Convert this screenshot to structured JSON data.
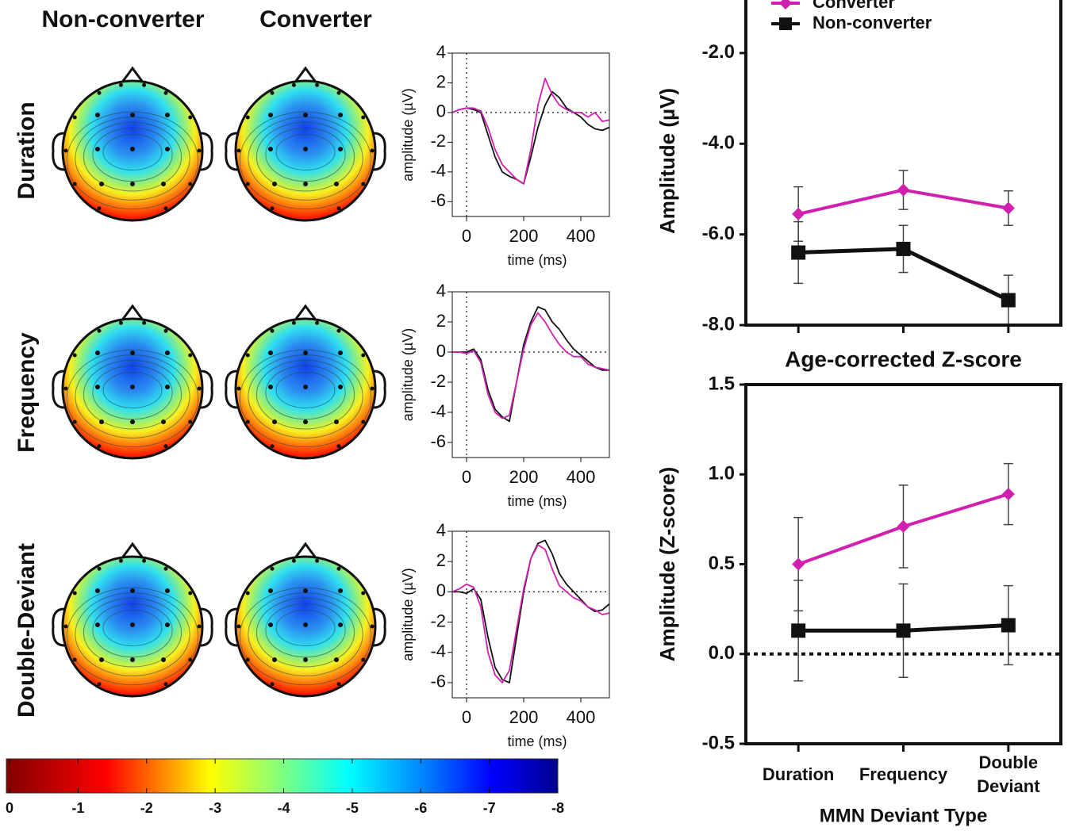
{
  "column_headers": [
    "Non-converter",
    "Converter"
  ],
  "row_labels": [
    "Duration",
    "Frequency",
    "Double-Deviant"
  ],
  "chart_data": [
    {
      "type": "line",
      "xlabel": "time (ms)",
      "ylabel": "amplitude (µV)",
      "x": [
        -50,
        -25,
        0,
        25,
        50,
        75,
        100,
        125,
        150,
        175,
        200,
        225,
        250,
        275,
        300,
        325,
        350,
        375,
        400,
        425,
        450,
        475,
        500
      ],
      "xlim": [
        -50,
        500
      ],
      "xticks": [
        0,
        200,
        400
      ],
      "ylim": [
        -7,
        4
      ],
      "yticks": [
        4,
        2,
        0,
        -2,
        -4,
        -6
      ],
      "series": [
        {
          "color": "#111111",
          "values": [
            0,
            0.2,
            0.3,
            0.2,
            0,
            -1.5,
            -3,
            -4,
            -4.3,
            -4.5,
            -4.8,
            -3,
            -1,
            0.5,
            1.4,
            1,
            0.3,
            0,
            -0.3,
            -0.8,
            -1.1,
            -1.2,
            -1.0
          ]
        },
        {
          "color": "#d11fb0",
          "values": [
            0,
            0.2,
            0.3,
            0.3,
            0.1,
            -1,
            -2.5,
            -3.5,
            -4,
            -4.5,
            -4.8,
            -2.5,
            0.5,
            2.3,
            1.2,
            0.5,
            0.2,
            0,
            0,
            -0.3,
            0,
            -0.6,
            -0.5
          ]
        }
      ]
    },
    {
      "type": "line",
      "xlabel": "time (ms)",
      "ylabel": "amplitude (µV)",
      "x": [
        -50,
        -25,
        0,
        25,
        50,
        75,
        100,
        125,
        150,
        175,
        200,
        225,
        250,
        275,
        300,
        325,
        350,
        375,
        400,
        425,
        450,
        475,
        500
      ],
      "xlim": [
        -50,
        500
      ],
      "xticks": [
        0,
        200,
        400
      ],
      "ylim": [
        -7,
        4
      ],
      "yticks": [
        4,
        2,
        0,
        -2,
        -4,
        -6
      ],
      "series": [
        {
          "color": "#111111",
          "values": [
            0,
            0,
            0,
            0.2,
            -0.5,
            -2.5,
            -3.8,
            -4.3,
            -4.6,
            -2,
            0.5,
            2,
            3,
            2.8,
            2,
            1.5,
            0.8,
            0.2,
            -0.2,
            -0.6,
            -1,
            -1.2,
            -1.2
          ]
        },
        {
          "color": "#d11fb0",
          "values": [
            0,
            0,
            -0.1,
            0.1,
            -0.7,
            -2.8,
            -4,
            -4.4,
            -4.2,
            -2,
            0.2,
            1.8,
            2.6,
            2,
            1.2,
            0.5,
            0,
            -0.3,
            -0.3,
            -0.8,
            -1,
            -1.1,
            -1.2
          ]
        }
      ]
    },
    {
      "type": "line",
      "xlabel": "time (ms)",
      "ylabel": "amplitude (µV)",
      "x": [
        -50,
        -25,
        0,
        25,
        50,
        75,
        100,
        125,
        150,
        175,
        200,
        225,
        250,
        275,
        300,
        325,
        350,
        375,
        400,
        425,
        450,
        475,
        500
      ],
      "xlim": [
        -50,
        500
      ],
      "xticks": [
        0,
        200,
        400
      ],
      "ylim": [
        -7,
        4
      ],
      "yticks": [
        4,
        2,
        0,
        -2,
        -4,
        -6
      ],
      "series": [
        {
          "color": "#111111",
          "values": [
            0,
            0,
            -0.1,
            0.2,
            -0.5,
            -3,
            -5,
            -5.8,
            -6,
            -3,
            0,
            2.2,
            3.2,
            3.4,
            2.5,
            1.2,
            0.5,
            0,
            -0.5,
            -1,
            -1.3,
            -1.2,
            -0.8
          ]
        },
        {
          "color": "#d11fb0",
          "values": [
            0,
            0.2,
            0.5,
            0.3,
            -1,
            -4,
            -5.5,
            -6,
            -5.2,
            -2.5,
            0.2,
            2.2,
            3.1,
            2.8,
            1.5,
            0.4,
            0,
            -0.4,
            -0.6,
            -1,
            -1.2,
            -1.5,
            -1.4
          ]
        }
      ]
    },
    {
      "type": "line",
      "ylabel": "Amplitude (µV)",
      "legend": "top-left",
      "ylim": [
        -8,
        -0.76
      ],
      "yticks": [
        {
          "value": -2,
          "label": "-2.0"
        },
        {
          "value": -4,
          "label": "-4.0"
        },
        {
          "value": -6,
          "label": "-6.0"
        },
        {
          "value": -8,
          "label": "-8.0"
        }
      ],
      "series": [
        {
          "name": "Converter",
          "color": "#d11fb0",
          "marker": "diamond",
          "values": [
            -5.55,
            -5.02,
            -5.42
          ],
          "errors": [
            0.6,
            0.43,
            0.38
          ]
        },
        {
          "name": "Non-converter",
          "color": "#111111",
          "marker": "square",
          "values": [
            -6.4,
            -6.32,
            -7.45
          ],
          "errors": [
            0.68,
            0.52,
            0.55
          ]
        }
      ]
    },
    {
      "type": "line",
      "title": "Age-corrected Z-score",
      "ylabel": "Amplitude (Z-score)",
      "xlabel": "MMN Deviant Type",
      "categories": [
        "Duration",
        "Frequency",
        "Double Deviant"
      ],
      "ylim": [
        -0.5,
        1.5
      ],
      "yticks": [
        {
          "value": 1.5,
          "label": "1.5"
        },
        {
          "value": 1,
          "label": "1.0"
        },
        {
          "value": 0.5,
          "label": "0.5"
        },
        {
          "value": 0,
          "label": "0.0"
        },
        {
          "value": -0.5,
          "label": "-0.5"
        }
      ],
      "series": [
        {
          "name": "Converter",
          "color": "#d11fb0",
          "marker": "diamond",
          "values": [
            0.5,
            0.71,
            0.89
          ],
          "errors": [
            0.26,
            0.23,
            0.17
          ]
        },
        {
          "name": "Non-converter",
          "color": "#111111",
          "marker": "square",
          "values": [
            0.13,
            0.13,
            0.16
          ],
          "errors": [
            0.28,
            0.26,
            0.22
          ]
        }
      ]
    },
    {
      "type": "colorbar",
      "lim": [
        0,
        -8
      ],
      "ticks": [
        0,
        -1,
        -2,
        -3,
        -4,
        -5,
        -6,
        -7,
        -8
      ]
    }
  ]
}
